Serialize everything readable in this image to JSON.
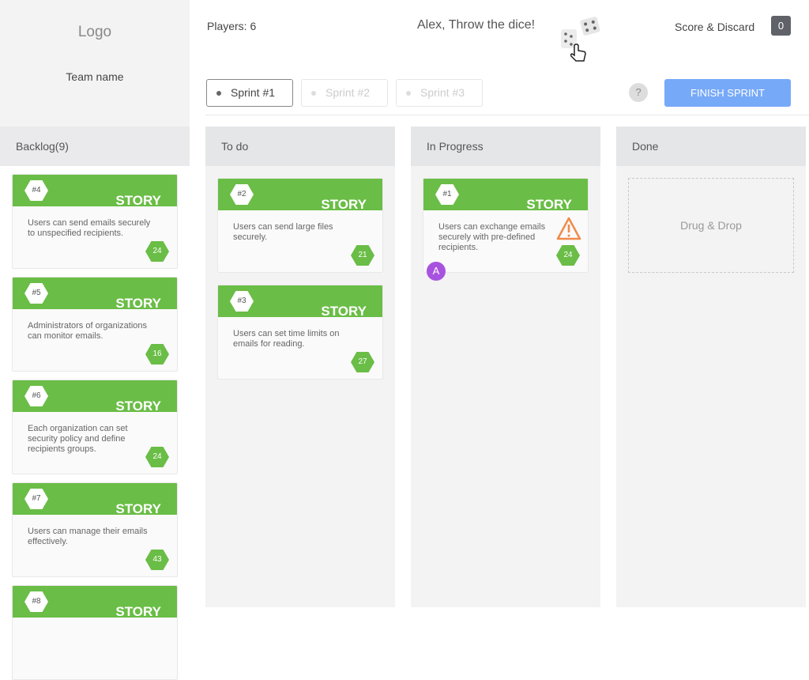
{
  "sidebar": {
    "logo": "Logo",
    "team": "Team name"
  },
  "header": {
    "players": "Players: 6",
    "prompt": "Alex, Throw the dice!",
    "score_label": "Score & Discard",
    "score": "0",
    "help": "?",
    "finish": "FINISH SPRINT",
    "sprints": [
      {
        "label": "Sprint #1",
        "active": true
      },
      {
        "label": "Sprint #2",
        "active": false
      },
      {
        "label": "Sprint #3",
        "active": false
      }
    ]
  },
  "colors": {
    "story_green": "#6abd46",
    "finish_blue": "#76a9f8",
    "avatar_purple": "#a853e0",
    "warning_orange": "#f08a4b"
  },
  "columns": {
    "backlog": {
      "title": "Backlog(9)",
      "cards": [
        {
          "id": "#4",
          "type": "STORY",
          "text": "Users can send emails securely to unspecified recipients.",
          "points": "24"
        },
        {
          "id": "#5",
          "type": "STORY",
          "text": "Administrators of organizations can monitor emails.",
          "points": "16"
        },
        {
          "id": "#6",
          "type": "STORY",
          "text": "Each organization can set security policy and define recipients groups.",
          "points": "24"
        },
        {
          "id": "#7",
          "type": "STORY",
          "text": "Users can manage their emails effectively.",
          "points": "43"
        },
        {
          "id": "#8",
          "type": "STORY",
          "text": "",
          "points": ""
        }
      ]
    },
    "todo": {
      "title": "To do",
      "cards": [
        {
          "id": "#2",
          "type": "STORY",
          "text": "Users can send large files securely.",
          "points": "21"
        },
        {
          "id": "#3",
          "type": "STORY",
          "text": "Users can set time limits on emails for reading.",
          "points": "27"
        }
      ]
    },
    "progress": {
      "title": "In Progress",
      "cards": [
        {
          "id": "#1",
          "type": "STORY",
          "text": "Users can exchange emails securely with pre-defined recipients.",
          "points": "24",
          "warning": true,
          "assignee": "A"
        }
      ]
    },
    "done": {
      "title": "Done",
      "placeholder": "Drug & Drop"
    }
  }
}
